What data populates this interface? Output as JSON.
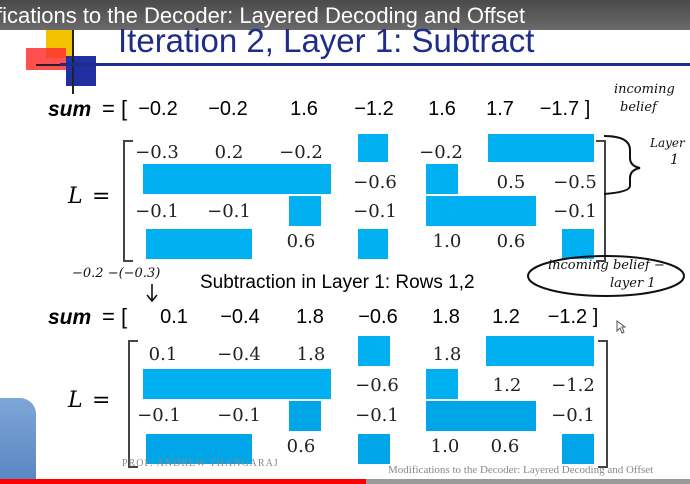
{
  "video": {
    "title": "fications to the Decoder: Layered Decoding and Offset",
    "progress": 0.53
  },
  "slide": {
    "heading": "Iteration 2, Layer 1: Subtract",
    "sum_label": "sum",
    "sum_eq": "= [",
    "sum1": [
      "−0.2",
      "−0.2",
      "1.6",
      "−1.2",
      "1.6",
      "1.7",
      "−1.7 ]"
    ],
    "L_label": "L",
    "equals": "=",
    "matrix1": [
      [
        "−0.3",
        "0.2",
        "−0.2",
        "",
        "−0.2",
        "",
        ""
      ],
      [
        "",
        "",
        "",
        "−0.6",
        "",
        "0.5",
        "−0.5"
      ],
      [
        "−0.1",
        "−0.1",
        "",
        "−0.1",
        "",
        "",
        "−0.1"
      ],
      [
        "",
        "",
        "0.6",
        "",
        "1.0",
        "0.6",
        ""
      ]
    ],
    "subtraction_caption": "Subtraction in Layer 1: Rows 1,2",
    "sum2": [
      "0.1",
      "−0.4",
      "1.8",
      "−0.6",
      "1.8",
      "1.2",
      "−1.2 ]"
    ],
    "matrix2": [
      [
        "0.1",
        "−0.4",
        "1.8",
        "",
        "1.8",
        "",
        ""
      ],
      [
        "",
        "",
        "",
        "−0.6",
        "",
        "1.2",
        "−1.2"
      ],
      [
        "−0.1",
        "−0.1",
        "",
        "−0.1",
        "",
        "",
        "−0.1"
      ],
      [
        "",
        "",
        "0.6",
        "",
        "1.0",
        "0.6",
        ""
      ]
    ],
    "footer_left": "PROF. ANDREW THANGARAJ",
    "footer_right": "Modifications to the Decoder: Layered Decoding and Offset"
  },
  "annotations": {
    "incoming_belief_top": [
      "incoming",
      "belief"
    ],
    "layer_1": [
      "Layer",
      "1"
    ],
    "incoming_belief_layer": [
      "incoming belief −",
      "layer 1"
    ],
    "computation": "−0.2 −(−0.3)"
  },
  "colors": {
    "block": "#00b0f0",
    "heading": "#1f2d8a",
    "progress": "#ff0000"
  }
}
